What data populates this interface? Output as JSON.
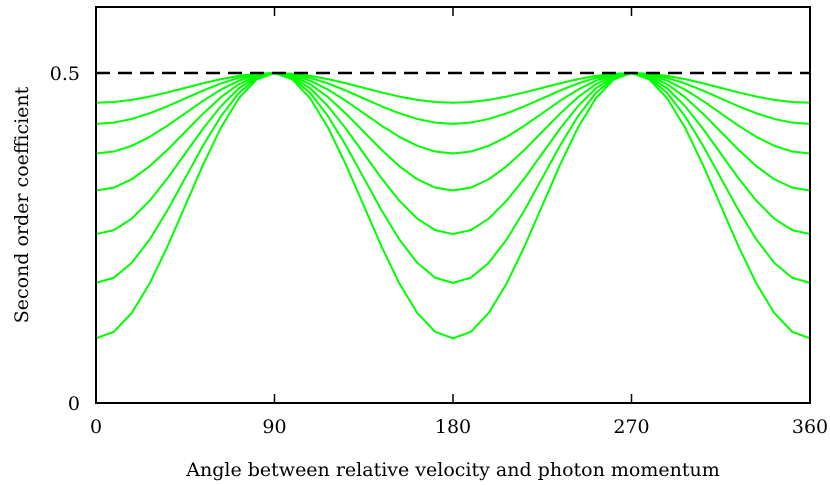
{
  "chart_data": {
    "type": "line",
    "xlabel": "Angle between relative velocity and photon momentum",
    "ylabel": "Second order coefficient",
    "xlim": [
      0,
      360
    ],
    "ylim": [
      0,
      0.6
    ],
    "x_ticks": [
      {
        "value": 0,
        "label": "0"
      },
      {
        "value": 90,
        "label": "90"
      },
      {
        "value": 180,
        "label": "180"
      },
      {
        "value": 270,
        "label": "270"
      },
      {
        "value": 360,
        "label": "360"
      }
    ],
    "y_ticks": [
      {
        "value": 0,
        "label": "0"
      },
      {
        "value": 0.5,
        "label": "0.5"
      }
    ],
    "reference_line": {
      "y": 0.5,
      "style": "dashed",
      "color": "#000000"
    },
    "series_color": "#00ff00",
    "curve_min_values_at_0_180_360": [
      0.455,
      0.423,
      0.378,
      0.322,
      0.256,
      0.182,
      0.098
    ],
    "curve_max_value_at_90_270": 0.5,
    "x_sample_step": 9,
    "grid": false,
    "legend": "none"
  }
}
